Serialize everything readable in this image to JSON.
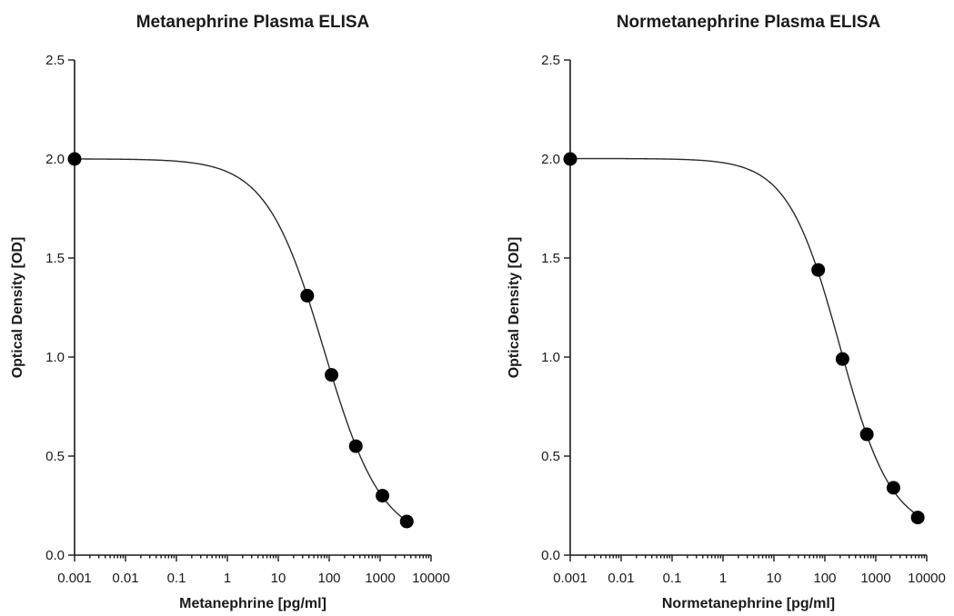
{
  "chart_data": [
    {
      "type": "scatter",
      "title": "Metanephrine Plasma ELISA",
      "xlabel": "Metanephrine [pg/ml]",
      "ylabel": "Optical Density [OD]",
      "x_scale": "log",
      "xlim": [
        0.001,
        10000
      ],
      "ylim": [
        0.0,
        2.5
      ],
      "x_ticks": [
        "0.001",
        "0.01",
        "0.1",
        "1",
        "10",
        "100",
        "1000",
        "10000"
      ],
      "y_ticks": [
        "0.0",
        "0.5",
        "1.0",
        "1.5",
        "2.0",
        "2.5"
      ],
      "grid": false,
      "fit": "4PL",
      "series": [
        {
          "x": [
            0.001,
            37,
            111,
            333,
            1111,
            3333
          ],
          "y": [
            2.0,
            1.31,
            0.91,
            0.55,
            0.3,
            0.17
          ]
        }
      ]
    },
    {
      "type": "scatter",
      "title": "Normetanephrine Plasma ELISA",
      "xlabel": "Normetanephrine [pg/ml]",
      "ylabel": "Optical Density [OD]",
      "x_scale": "log",
      "xlim": [
        0.001,
        10000
      ],
      "ylim": [
        0.0,
        2.5
      ],
      "x_ticks": [
        "0.001",
        "0.01",
        "0.1",
        "1",
        "10",
        "100",
        "1000",
        "10000"
      ],
      "y_ticks": [
        "0.0",
        "0.5",
        "1.0",
        "1.5",
        "2.0",
        "2.5"
      ],
      "grid": false,
      "fit": "4PL",
      "series": [
        {
          "x": [
            0.001,
            74,
            222,
            667,
            2222,
            6667
          ],
          "y": [
            2.0,
            1.44,
            0.99,
            0.61,
            0.34,
            0.19
          ]
        }
      ]
    }
  ]
}
